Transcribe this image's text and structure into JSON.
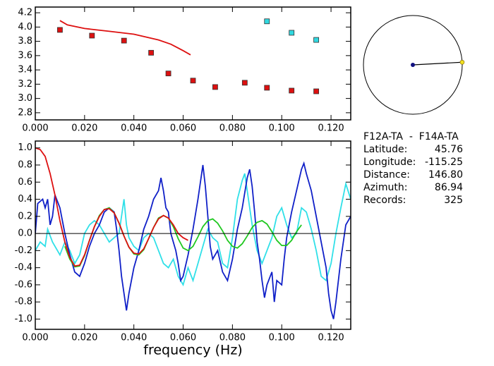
{
  "chart_data": [
    {
      "type": "scatter",
      "xlim": [
        0,
        0.128
      ],
      "ylim": [
        2.7,
        4.28
      ],
      "xticks": [
        {
          "value": 0,
          "label": "0.000"
        },
        {
          "value": 0.02,
          "label": "0.020"
        },
        {
          "value": 0.04,
          "label": "0.040"
        },
        {
          "value": 0.06,
          "label": "0.060"
        },
        {
          "value": 0.08,
          "label": "0.080"
        },
        {
          "value": 0.1,
          "label": "0.100"
        },
        {
          "value": 0.12,
          "label": "0.120"
        }
      ],
      "yticks": [
        {
          "value": 2.8,
          "label": "2.8"
        },
        {
          "value": 3,
          "label": "3.0"
        },
        3.2,
        3.4,
        3.6,
        3.8,
        {
          "value": 4,
          "label": "4.0"
        },
        4.2
      ],
      "series": [
        {
          "mode": "markers",
          "color": "#dd1010",
          "x": [
            0.01,
            0.023,
            0.036,
            0.047,
            0.054,
            0.064,
            0.073,
            0.085,
            0.094,
            0.104,
            0.114
          ],
          "values": [
            3.96,
            3.88,
            3.81,
            3.64,
            3.35,
            3.25,
            3.16,
            3.22,
            3.15,
            3.11,
            3.1
          ]
        },
        {
          "mode": "markers",
          "color": "#30d8e0",
          "x": [
            0.094,
            0.104,
            0.114
          ],
          "values": [
            4.08,
            3.92,
            3.82
          ]
        },
        {
          "mode": "line",
          "color": "#dd1010",
          "x": [
            0.01,
            0.013,
            0.02,
            0.03,
            0.04,
            0.05,
            0.055,
            0.06,
            0.063
          ],
          "values": [
            4.09,
            4.03,
            3.98,
            3.94,
            3.9,
            3.82,
            3.76,
            3.67,
            3.61
          ]
        }
      ]
    },
    {
      "type": "line",
      "xlabel": "frequency (Hz)",
      "xlim": [
        0,
        0.128
      ],
      "ylim": [
        -1.12,
        1.08
      ],
      "xticks": [
        {
          "value": 0,
          "label": "0.000"
        },
        {
          "value": 0.02,
          "label": "0.020"
        },
        {
          "value": 0.04,
          "label": "0.040"
        },
        {
          "value": 0.06,
          "label": "0.060"
        },
        {
          "value": 0.08,
          "label": "0.080"
        },
        {
          "value": 0.1,
          "label": "0.100"
        },
        {
          "value": 0.12,
          "label": "0.120"
        }
      ],
      "yticks": [
        {
          "value": -1,
          "label": "-1.0"
        },
        -0.8,
        -0.6,
        -0.4,
        -0.2,
        {
          "value": 0,
          "label": "0.0"
        },
        0.2,
        0.4,
        0.6,
        0.8,
        {
          "value": 1,
          "label": "1.0"
        }
      ],
      "series": [
        {
          "color": "#30e0e8",
          "x": [
            0,
            0.002,
            0.004,
            0.005,
            0.007,
            0.009,
            0.01,
            0.012,
            0.014,
            0.016,
            0.018,
            0.02,
            0.022,
            0.024,
            0.026,
            0.028,
            0.03,
            0.032,
            0.034,
            0.035,
            0.036,
            0.037,
            0.038,
            0.04,
            0.042,
            0.044,
            0.046,
            0.048,
            0.05,
            0.052,
            0.054,
            0.056,
            0.058,
            0.06,
            0.062,
            0.064,
            0.066,
            0.068,
            0.07,
            0.072,
            0.074,
            0.076,
            0.078,
            0.08,
            0.082,
            0.084,
            0.085,
            0.086,
            0.088,
            0.09,
            0.092,
            0.094,
            0.096,
            0.098,
            0.1,
            0.102,
            0.104,
            0.106,
            0.108,
            0.11,
            0.112,
            0.114,
            0.116,
            0.118,
            0.12,
            0.122,
            0.124,
            0.126,
            0.128
          ],
          "values": [
            -0.2,
            -0.1,
            -0.15,
            0.05,
            -0.1,
            -0.2,
            -0.25,
            -0.1,
            -0.2,
            -0.35,
            -0.25,
            0.0,
            0.1,
            0.15,
            0.1,
            0.0,
            -0.1,
            -0.05,
            0.0,
            0.2,
            0.4,
            0.1,
            -0.05,
            -0.15,
            -0.2,
            -0.05,
            0.0,
            -0.05,
            -0.2,
            -0.35,
            -0.4,
            -0.3,
            -0.5,
            -0.6,
            -0.4,
            -0.55,
            -0.35,
            -0.15,
            0.05,
            -0.05,
            -0.1,
            -0.35,
            -0.4,
            -0.05,
            0.4,
            0.62,
            0.7,
            0.5,
            0.1,
            -0.2,
            -0.35,
            -0.2,
            -0.05,
            0.2,
            0.3,
            0.1,
            -0.05,
            0.0,
            0.3,
            0.25,
            0.05,
            -0.2,
            -0.5,
            -0.55,
            -0.35,
            0.0,
            0.3,
            0.58,
            0.4
          ]
        },
        {
          "color": "#1020c8",
          "x": [
            0,
            0.001,
            0.003,
            0.004,
            0.005,
            0.006,
            0.007,
            0.008,
            0.01,
            0.012,
            0.014,
            0.016,
            0.018,
            0.02,
            0.022,
            0.024,
            0.026,
            0.028,
            0.03,
            0.032,
            0.033,
            0.034,
            0.035,
            0.036,
            0.037,
            0.038,
            0.039,
            0.04,
            0.042,
            0.044,
            0.046,
            0.048,
            0.05,
            0.051,
            0.052,
            0.053,
            0.054,
            0.055,
            0.056,
            0.057,
            0.058,
            0.059,
            0.06,
            0.062,
            0.064,
            0.066,
            0.067,
            0.068,
            0.069,
            0.07,
            0.071,
            0.072,
            0.074,
            0.076,
            0.078,
            0.08,
            0.082,
            0.084,
            0.086,
            0.087,
            0.088,
            0.089,
            0.09,
            0.091,
            0.092,
            0.093,
            0.094,
            0.096,
            0.097,
            0.098,
            0.1,
            0.101,
            0.102,
            0.104,
            0.106,
            0.108,
            0.109,
            0.11,
            0.112,
            0.114,
            0.116,
            0.118,
            0.119,
            0.12,
            0.121,
            0.122,
            0.124,
            0.126,
            0.128
          ],
          "values": [
            0.0,
            0.35,
            0.4,
            0.3,
            0.4,
            0.1,
            0.2,
            0.45,
            0.3,
            0.0,
            -0.25,
            -0.45,
            -0.5,
            -0.35,
            -0.15,
            0.0,
            0.1,
            0.25,
            0.3,
            0.25,
            0.05,
            -0.2,
            -0.5,
            -0.7,
            -0.9,
            -0.7,
            -0.55,
            -0.4,
            -0.2,
            0.05,
            0.2,
            0.4,
            0.5,
            0.65,
            0.5,
            0.3,
            0.25,
            0.0,
            -0.1,
            -0.2,
            -0.35,
            -0.55,
            -0.5,
            -0.25,
            0.05,
            0.4,
            0.6,
            0.8,
            0.55,
            0.2,
            -0.15,
            -0.3,
            -0.2,
            -0.45,
            -0.55,
            -0.3,
            0.05,
            0.3,
            0.65,
            0.75,
            0.55,
            0.25,
            -0.1,
            -0.3,
            -0.55,
            -0.75,
            -0.6,
            -0.45,
            -0.8,
            -0.55,
            -0.6,
            -0.3,
            -0.05,
            0.25,
            0.5,
            0.75,
            0.82,
            0.7,
            0.5,
            0.2,
            -0.1,
            -0.4,
            -0.7,
            -0.9,
            -1.0,
            -0.8,
            -0.3,
            0.1,
            0.2
          ]
        },
        {
          "color": "#20c820",
          "x": [
            0.012,
            0.014,
            0.016,
            0.018,
            0.02,
            0.022,
            0.024,
            0.026,
            0.028,
            0.03,
            0.032,
            0.034,
            0.036,
            0.038,
            0.04,
            0.042,
            0.044,
            0.046,
            0.048,
            0.05,
            0.052,
            0.054,
            0.056,
            0.058,
            0.06,
            0.062,
            0.064,
            0.066,
            0.068,
            0.07,
            0.072,
            0.074,
            0.076,
            0.078,
            0.08,
            0.082,
            0.084,
            0.086,
            0.088,
            0.09,
            0.092,
            0.094,
            0.096,
            0.098,
            0.1,
            0.102,
            0.104,
            0.106,
            0.108
          ],
          "values": [
            -0.15,
            -0.3,
            -0.39,
            -0.38,
            -0.26,
            -0.08,
            0.08,
            0.21,
            0.28,
            0.3,
            0.24,
            0.12,
            -0.03,
            -0.16,
            -0.24,
            -0.25,
            -0.19,
            -0.06,
            0.07,
            0.18,
            0.21,
            0.18,
            0.08,
            -0.06,
            -0.17,
            -0.2,
            -0.15,
            -0.04,
            0.08,
            0.15,
            0.17,
            0.12,
            0.03,
            -0.08,
            -0.15,
            -0.17,
            -0.12,
            -0.03,
            0.07,
            0.13,
            0.15,
            0.11,
            0.02,
            -0.08,
            -0.14,
            -0.14,
            -0.08,
            0.02,
            0.1
          ]
        },
        {
          "color": "#dd1010",
          "x": [
            0,
            0.002,
            0.004,
            0.006,
            0.008,
            0.01,
            0.012,
            0.014,
            0.016,
            0.018,
            0.02,
            0.022,
            0.024,
            0.026,
            0.028,
            0.03,
            0.032,
            0.034,
            0.036,
            0.038,
            0.04,
            0.042,
            0.044,
            0.046,
            0.048,
            0.05,
            0.052,
            0.054,
            0.056,
            0.058,
            0.06,
            0.062
          ],
          "values": [
            1.0,
            0.98,
            0.9,
            0.7,
            0.45,
            0.15,
            -0.1,
            -0.28,
            -0.38,
            -0.37,
            -0.25,
            -0.08,
            0.08,
            0.2,
            0.28,
            0.29,
            0.24,
            0.12,
            -0.03,
            -0.16,
            -0.23,
            -0.24,
            -0.18,
            -0.06,
            0.07,
            0.17,
            0.21,
            0.18,
            0.1,
            0.0,
            -0.05,
            -0.08
          ]
        }
      ]
    }
  ],
  "info": {
    "title": "F12A-TA  -  F14A-TA",
    "rows": [
      {
        "label": "Latitude:",
        "value": "45.76"
      },
      {
        "label": "Longitude:",
        "value": "-115.25"
      },
      {
        "label": "Distance:",
        "value": "146.80"
      },
      {
        "label": "Azimuth:",
        "value": "86.94"
      },
      {
        "label": "Records:",
        "value": "325"
      }
    ]
  }
}
